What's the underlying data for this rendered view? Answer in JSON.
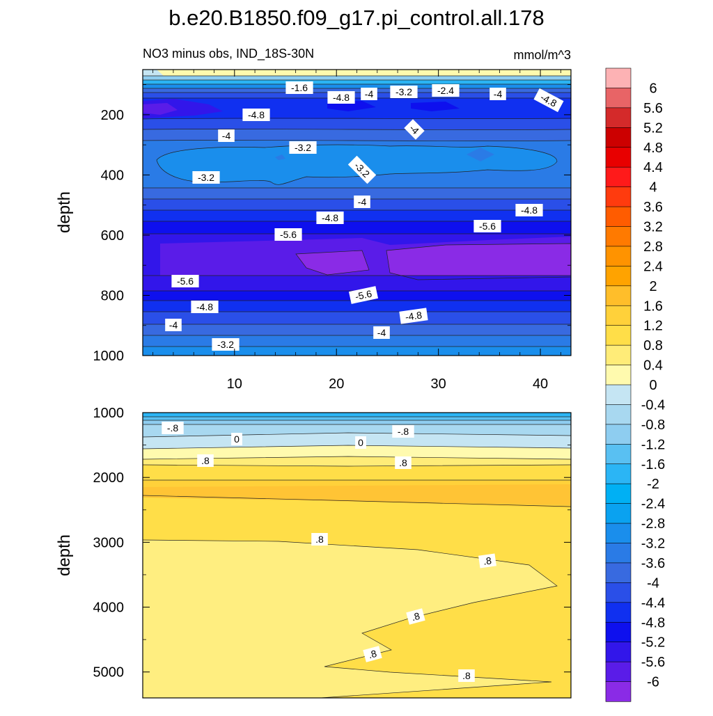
{
  "chart_data": {
    "type": "contour",
    "title": "b.e20.B1850.f09_g17.pi_control.all.178",
    "subtitle_left": "NO3 minus obs, IND_18S-30N",
    "subtitle_right": "mmol/m^3",
    "x_ticks": [
      "10",
      "20",
      "30",
      "40"
    ],
    "x_range": [
      1,
      43
    ],
    "panels": [
      {
        "name": "upper",
        "ylabel": "depth",
        "y_range": [
          50,
          1000
        ],
        "y_ticks": [
          "200",
          "400",
          "600",
          "800",
          "1000"
        ],
        "y_tick_values": [
          200,
          400,
          600,
          800,
          1000
        ],
        "contour_labels": [
          "-1.6",
          "-4.8",
          "-4",
          "-3.2",
          "-2.4",
          "-4",
          "-4.8",
          "-4.8",
          "-4",
          "-4",
          "-3.2",
          "-3.2",
          "-3.2",
          "-4",
          "-4.8",
          "-4.8",
          "-5.6",
          "-5.6",
          "-5.6",
          "-5.6",
          "-4.8",
          "-4.8",
          "-4",
          "-4",
          "-3.2"
        ]
      },
      {
        "name": "lower",
        "ylabel": "depth",
        "y_range": [
          1000,
          5400
        ],
        "y_ticks": [
          "1000",
          "2000",
          "3000",
          "4000",
          "5000"
        ],
        "y_tick_values": [
          1000,
          2000,
          3000,
          4000,
          5000
        ],
        "contour_labels": [
          "-.8",
          "-.8",
          "0",
          "0",
          ".8",
          ".8",
          ".8",
          ".8",
          ".8",
          ".8",
          ".8"
        ]
      }
    ],
    "colorbar": {
      "labels": [
        "6",
        "5.6",
        "5.2",
        "4.8",
        "4.4",
        "4",
        "3.6",
        "3.2",
        "2.8",
        "2.4",
        "2",
        "1.6",
        "1.2",
        "0.8",
        "0.4",
        "0",
        "-0.4",
        "-0.8",
        "-1.2",
        "-1.6",
        "-2",
        "-2.4",
        "-2.8",
        "-3.2",
        "-3.6",
        "-4",
        "-4.4",
        "-4.8",
        "-5.2",
        "-5.6",
        "-6"
      ],
      "colors": [
        "#FDB2B4",
        "#E86466",
        "#D42A2A",
        "#CC0000",
        "#E80000",
        "#FF1A1A",
        "#FF3B0E",
        "#FF5C00",
        "#FF7A00",
        "#FF9300",
        "#FFA300",
        "#FFBE2A",
        "#FFD13A",
        "#FFDE48",
        "#FFEC78",
        "#FFFAAE",
        "#C5E5F3",
        "#A8D8F0",
        "#8ECDF0",
        "#59C0F2",
        "#2BB5F5",
        "#00B0F4",
        "#0AA2F0",
        "#1A8EEC",
        "#2A7BE6",
        "#386AE0",
        "#2A4FE8",
        "#1030F0",
        "#0E10EE",
        "#3216EA",
        "#5A1CE8",
        "#8A2BE6"
      ]
    }
  }
}
